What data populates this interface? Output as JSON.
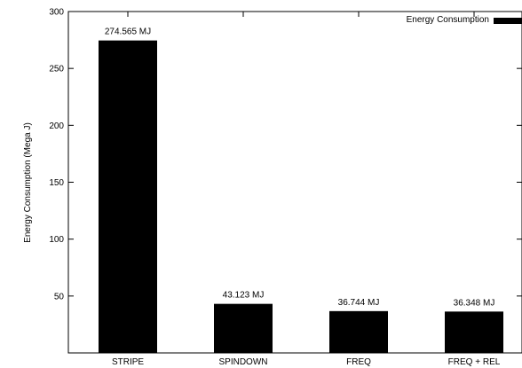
{
  "chart_data": {
    "type": "bar",
    "categories": [
      "STRIPE",
      "SPINDOWN",
      "FREQ",
      "FREQ + REL"
    ],
    "series": [
      {
        "name": "Energy Consumption",
        "values": [
          274.565,
          43.123,
          36.744,
          36.348
        ]
      }
    ],
    "data_labels": [
      "274.565 MJ",
      "43.123 MJ",
      "36.744 MJ",
      "36.348 MJ"
    ],
    "ylabel": "Energy Consumption (Mega J)",
    "ylim": [
      0,
      300
    ],
    "yticks": [
      50,
      100,
      150,
      200,
      250,
      300
    ],
    "ytick_labels": [
      "50",
      "100",
      "150",
      "200",
      "250",
      "300"
    ],
    "bar_color": "#000000",
    "grid": false,
    "legend_position": "top-right"
  }
}
